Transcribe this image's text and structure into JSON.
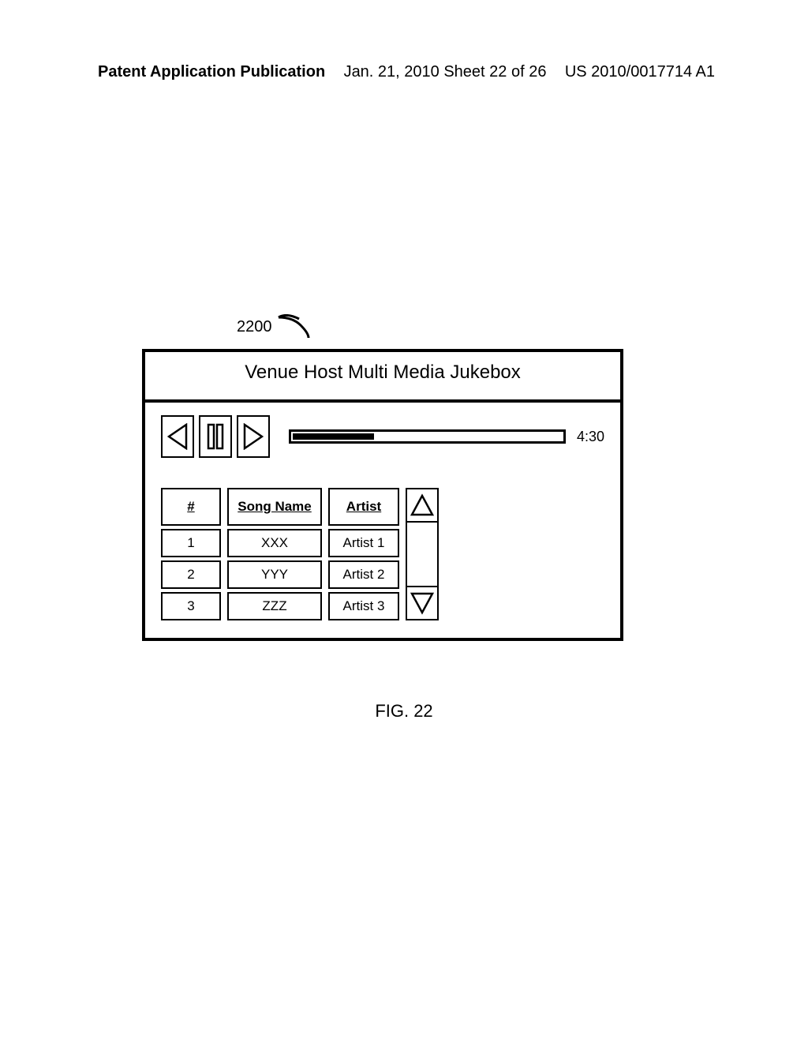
{
  "header": {
    "left": "Patent Application Publication",
    "mid": "Jan. 21, 2010  Sheet 22 of 26",
    "right": "US 2010/0017714 A1"
  },
  "reference_number": "2200",
  "device": {
    "title": "Venue Host Multi Media Jukebox",
    "time": "4:30",
    "progress_percent": 30,
    "columns": {
      "num": "#",
      "song": "Song Name",
      "artist": "Artist"
    },
    "rows": [
      {
        "num": "1",
        "song": "XXX",
        "artist": "Artist 1"
      },
      {
        "num": "2",
        "song": "YYY",
        "artist": "Artist 2"
      },
      {
        "num": "3",
        "song": "ZZZ",
        "artist": "Artist 3"
      }
    ]
  },
  "figure_label": "FIG. 22",
  "style": {
    "stroke": "#000000",
    "bg": "#ffffff",
    "border_width_outer": 4,
    "border_width_inner": 2,
    "font_family": "Arial",
    "title_fontsize": 24,
    "header_fontsize": 20,
    "cell_fontsize": 17,
    "time_fontsize": 18,
    "fig_fontsize": 22
  }
}
